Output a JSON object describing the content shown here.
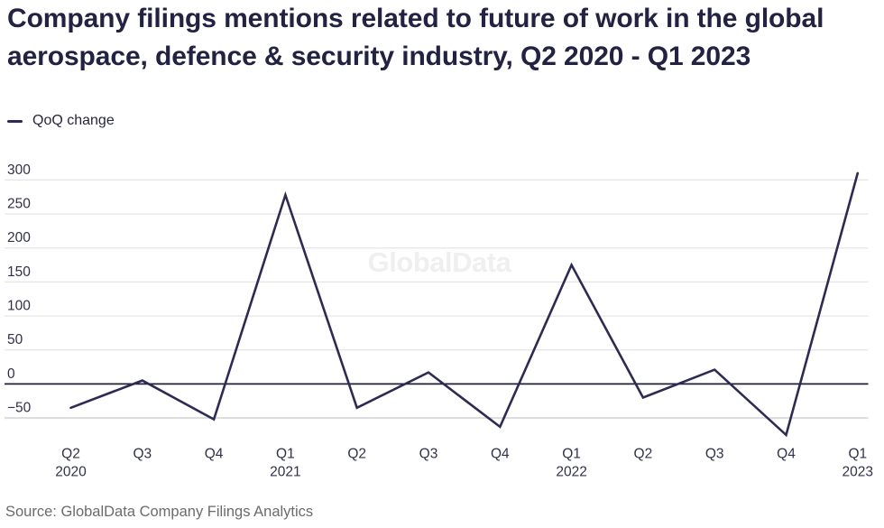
{
  "chart_data": {
    "type": "line",
    "title": "Company filings mentions related to future of work in the global aerospace, defence & security industry, Q2 2020 - Q1 2023",
    "categories": [
      "Q2 2020",
      "Q3 2020",
      "Q4 2020",
      "Q1 2021",
      "Q2 2021",
      "Q3 2021",
      "Q4 2021",
      "Q1 2022",
      "Q2 2022",
      "Q3 2022",
      "Q4 2022",
      "Q1 2023"
    ],
    "x_tick_labels": [
      {
        "quarter": "Q2",
        "year": "2020"
      },
      {
        "quarter": "Q3",
        "year": ""
      },
      {
        "quarter": "Q4",
        "year": ""
      },
      {
        "quarter": "Q1",
        "year": "2021"
      },
      {
        "quarter": "Q2",
        "year": ""
      },
      {
        "quarter": "Q3",
        "year": ""
      },
      {
        "quarter": "Q4",
        "year": ""
      },
      {
        "quarter": "Q1",
        "year": "2022"
      },
      {
        "quarter": "Q2",
        "year": ""
      },
      {
        "quarter": "Q3",
        "year": ""
      },
      {
        "quarter": "Q4",
        "year": ""
      },
      {
        "quarter": "Q1",
        "year": "2023"
      }
    ],
    "series": [
      {
        "name": "QoQ change",
        "values": [
          -35,
          5,
          -52,
          278,
          -35,
          17,
          -63,
          175,
          -20,
          21,
          -75,
          310
        ],
        "color": "#2e2b52"
      }
    ],
    "y_ticks": [
      300,
      250,
      200,
      150,
      100,
      50,
      0,
      -50
    ],
    "ylim": [
      -80,
      312
    ],
    "grid": true,
    "zero_line": true,
    "legend_position": "top-left",
    "xlabel": "",
    "ylabel": ""
  },
  "legend": {
    "label": "QoQ change"
  },
  "watermark": {
    "text": "GlobalData",
    "color": "#efefef"
  },
  "source": {
    "text": "Source: GlobalData Company Filings Analytics"
  },
  "colors": {
    "title": "#232243",
    "tick_label": "#30304a",
    "gridline": "#e5e5e5",
    "bottom_gridline": "#dcdcdc",
    "zero_line": "#21203a",
    "series_line": "#2e2b52",
    "source_text": "#6b6b6b"
  }
}
